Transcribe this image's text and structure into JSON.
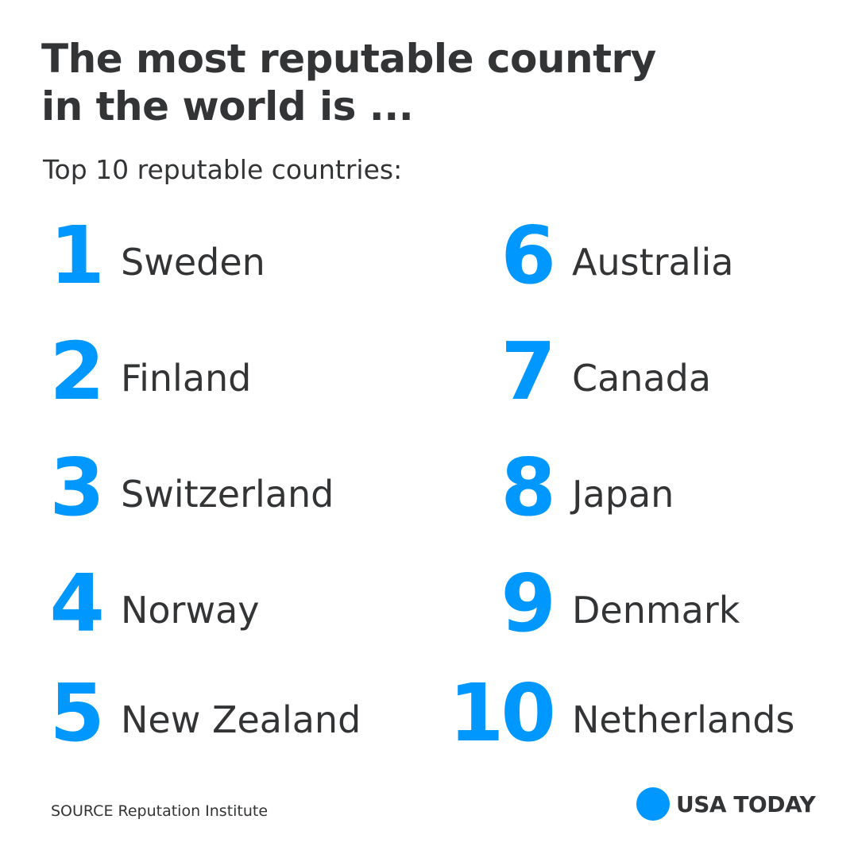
{
  "title": {
    "line1": "The most reputable country",
    "line2": "in the world is ..."
  },
  "subtitle": "Top 10 reputable countries:",
  "rankings": [
    {
      "rank": "1",
      "country": "Sweden"
    },
    {
      "rank": "2",
      "country": "Finland"
    },
    {
      "rank": "3",
      "country": "Switzerland"
    },
    {
      "rank": "4",
      "country": "Norway"
    },
    {
      "rank": "5",
      "country": "New Zealand"
    },
    {
      "rank": "6",
      "country": "Australia"
    },
    {
      "rank": "7",
      "country": "Canada"
    },
    {
      "rank": "8",
      "country": "Japan"
    },
    {
      "rank": "9",
      "country": "Denmark"
    },
    {
      "rank": "10",
      "country": "Netherlands"
    }
  ],
  "source": "SOURCE Reputation Institute",
  "brand": {
    "name": "USA TODAY",
    "dot_icon": "circle-logo-icon"
  },
  "colors": {
    "accent": "#0098fe",
    "text": "#333436",
    "background": "#ffffff"
  }
}
